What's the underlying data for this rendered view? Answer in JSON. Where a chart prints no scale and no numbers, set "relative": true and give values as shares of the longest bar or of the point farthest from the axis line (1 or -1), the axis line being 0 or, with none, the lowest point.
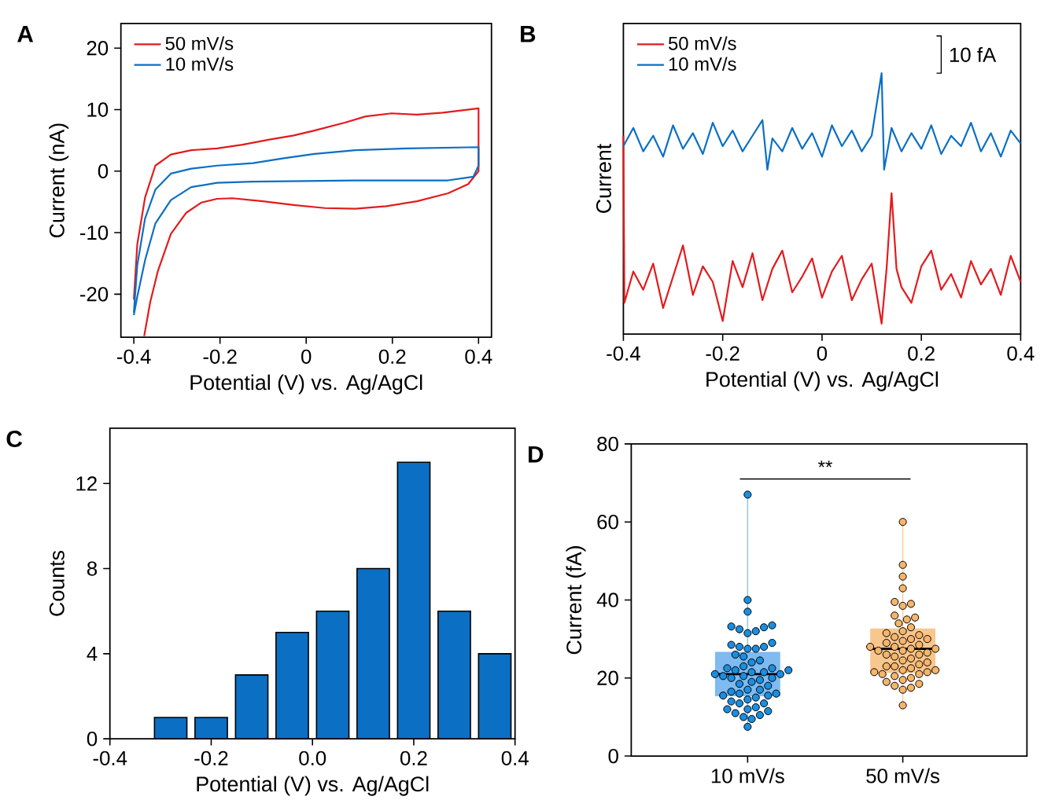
{
  "chart_data": [
    {
      "type": "line",
      "title": "A",
      "xlabel": "Potential (V) vs. Ag/AgCl",
      "ylabel": "Current (nA)",
      "xlim": [
        -0.43,
        0.43
      ],
      "ylim": [
        -27,
        24
      ],
      "xticks": [
        -0.4,
        -0.2,
        0,
        0.2,
        0.4
      ],
      "yticks": [
        -20,
        -10,
        0,
        10,
        20
      ],
      "legend": "top left",
      "line_style": "solid",
      "series": [
        {
          "name": "50 mV/s",
          "color": "#e31a1c",
          "x": [
            -0.4,
            -0.392,
            -0.374,
            -0.35,
            -0.314,
            -0.267,
            -0.207,
            -0.148,
            -0.088,
            -0.029,
            0.019,
            0.09,
            0.138,
            0.198,
            0.257,
            0.317,
            0.4,
            0.4,
            0.376,
            0.329,
            0.257,
            0.186,
            0.114,
            0.043,
            -0.029,
            -0.1,
            -0.171,
            -0.207,
            -0.243,
            -0.279,
            -0.314,
            -0.344,
            -0.362,
            -0.376
          ],
          "values": [
            -20.9,
            -11.9,
            -4.3,
            0.9,
            2.7,
            3.4,
            3.7,
            4.3,
            5.1,
            5.8,
            6.6,
            7.9,
            8.9,
            9.4,
            9.2,
            9.5,
            10.2,
            0,
            -2.1,
            -3.6,
            -4.9,
            -5.7,
            -6.1,
            -6,
            -5.5,
            -4.9,
            -4.4,
            -4.5,
            -5.1,
            -6.8,
            -10.2,
            -16.2,
            -21.3,
            -26.8
          ]
        },
        {
          "name": "10 mV/s",
          "color": "#0b6fc4",
          "x": [
            -0.4,
            -0.392,
            -0.374,
            -0.35,
            -0.314,
            -0.267,
            -0.207,
            -0.124,
            -0.052,
            0.019,
            0.114,
            0.233,
            0.4,
            0.4,
            0.388,
            0.329,
            0.114,
            -0.124,
            -0.207,
            -0.267,
            -0.314,
            -0.35,
            -0.374,
            -0.392,
            -0.4
          ],
          "values": [
            -23,
            -15.3,
            -7.7,
            -3,
            -0.4,
            0.4,
            0.9,
            1.3,
            2.1,
            2.8,
            3.4,
            3.7,
            3.9,
            0.9,
            -0.9,
            -1.5,
            -1.5,
            -1.7,
            -1.9,
            -2.6,
            -4.7,
            -8.5,
            -14.5,
            -20.4,
            -23.4
          ]
        }
      ]
    },
    {
      "type": "line",
      "title": "B",
      "xlabel": "Potential (V) vs. Ag/AgCl",
      "ylabel": "Current",
      "relative": true,
      "xlim": [
        -0.4,
        0.4
      ],
      "xticks": [
        -0.4,
        -0.2,
        0,
        0.2,
        0.4
      ],
      "legend": "top left",
      "line_style": "solid",
      "annotations": [
        "10 fA"
      ],
      "series": [
        {
          "name": "50 mV/s",
          "color": "#e31a1c",
          "x": [
            -0.4,
            -0.398,
            -0.38,
            -0.36,
            -0.34,
            -0.32,
            -0.3,
            -0.28,
            -0.26,
            -0.24,
            -0.22,
            -0.2,
            -0.18,
            -0.16,
            -0.14,
            -0.12,
            -0.1,
            -0.08,
            -0.06,
            -0.04,
            -0.02,
            0,
            0.02,
            0.04,
            0.06,
            0.08,
            0.1,
            0.12,
            0.13,
            0.14,
            0.15,
            0.16,
            0.18,
            0.2,
            0.22,
            0.24,
            0.26,
            0.28,
            0.3,
            0.32,
            0.34,
            0.36,
            0.38,
            0.4
          ],
          "values": [
            0.76,
            0.12,
            0.24,
            0.17,
            0.27,
            0.1,
            0.22,
            0.34,
            0.15,
            0.26,
            0.2,
            0.05,
            0.28,
            0.18,
            0.31,
            0.13,
            0.25,
            0.32,
            0.16,
            0.22,
            0.29,
            0.14,
            0.24,
            0.3,
            0.13,
            0.21,
            0.27,
            0.04,
            0.25,
            0.54,
            0.25,
            0.18,
            0.12,
            0.26,
            0.32,
            0.17,
            0.23,
            0.14,
            0.28,
            0.19,
            0.25,
            0.15,
            0.3,
            0.2
          ]
        },
        {
          "name": "10 mV/s",
          "color": "#0b6fc4",
          "x": [
            -0.4,
            -0.38,
            -0.36,
            -0.34,
            -0.32,
            -0.3,
            -0.28,
            -0.26,
            -0.24,
            -0.22,
            -0.2,
            -0.18,
            -0.16,
            -0.14,
            -0.12,
            -0.11,
            -0.1,
            -0.08,
            -0.06,
            -0.04,
            -0.02,
            0,
            0.02,
            0.04,
            0.06,
            0.08,
            0.1,
            0.12,
            0.125,
            0.14,
            0.16,
            0.18,
            0.2,
            0.22,
            0.24,
            0.26,
            0.28,
            0.3,
            0.32,
            0.34,
            0.36,
            0.38,
            0.4
          ],
          "values": [
            0.72,
            0.79,
            0.7,
            0.76,
            0.68,
            0.8,
            0.71,
            0.77,
            0.69,
            0.81,
            0.72,
            0.78,
            0.7,
            0.76,
            0.82,
            0.63,
            0.75,
            0.7,
            0.79,
            0.71,
            0.77,
            0.68,
            0.8,
            0.72,
            0.78,
            0.7,
            0.76,
            1.0,
            0.63,
            0.79,
            0.7,
            0.77,
            0.71,
            0.8,
            0.69,
            0.76,
            0.72,
            0.81,
            0.7,
            0.77,
            0.68,
            0.78,
            0.73
          ]
        }
      ]
    },
    {
      "type": "histogram",
      "title": "C",
      "xlabel": "Potential (V) vs. Ag/AgCl",
      "ylabel": "Counts",
      "color": "#0b6fc4",
      "bins": [
        -0.32,
        -0.24,
        -0.16,
        -0.08,
        0,
        0.08,
        0.16,
        0.24,
        0.32,
        0.4
      ],
      "values": [
        1,
        1,
        3,
        5,
        6,
        8,
        13,
        6,
        4
      ],
      "xlim": [
        -0.4,
        0.4
      ],
      "ylim": [
        0,
        14.6
      ],
      "xticks": [
        -0.4,
        -0.2,
        {
          "value": 0,
          "label": "0.0"
        },
        0.2,
        0.4
      ],
      "yticks": [
        0,
        4,
        8,
        12
      ]
    },
    {
      "type": "box",
      "title": "D",
      "ylabel": "Current (fA)",
      "categories": [
        "10 mV/s",
        "50 mV/s"
      ],
      "colors": [
        "#7fbaf0",
        "#f9c68e"
      ],
      "ylim": [
        0,
        80
      ],
      "yticks": [
        0,
        20,
        40,
        60,
        80
      ],
      "annotations": [
        "**"
      ],
      "boxes": [
        {
          "low": 7.5,
          "q1": 15.3,
          "median": 21,
          "q3": 26.7,
          "high": 67
        },
        {
          "low": 13,
          "q1": 21.3,
          "median": 27.5,
          "q3": 32.7,
          "high": 60
        }
      ],
      "series": [
        {
          "type": "scatter",
          "color": "#1a8ee0",
          "x": [
            "10 mV/s",
            "10 mV/s",
            "10 mV/s",
            "10 mV/s",
            "10 mV/s",
            "10 mV/s",
            "10 mV/s",
            "10 mV/s",
            "10 mV/s",
            "10 mV/s",
            "10 mV/s",
            "10 mV/s",
            "10 mV/s",
            "10 mV/s",
            "10 mV/s",
            "10 mV/s",
            "10 mV/s",
            "10 mV/s",
            "10 mV/s",
            "10 mV/s",
            "10 mV/s",
            "10 mV/s",
            "10 mV/s",
            "10 mV/s",
            "10 mV/s",
            "10 mV/s",
            "10 mV/s",
            "10 mV/s",
            "10 mV/s",
            "10 mV/s",
            "10 mV/s",
            "10 mV/s",
            "10 mV/s",
            "10 mV/s",
            "10 mV/s",
            "10 mV/s",
            "10 mV/s",
            "10 mV/s",
            "10 mV/s",
            "10 mV/s",
            "10 mV/s",
            "10 mV/s",
            "10 mV/s",
            "10 mV/s",
            "10 mV/s",
            "10 mV/s",
            "10 mV/s",
            "10 mV/s",
            "10 mV/s",
            "10 mV/s",
            "10 mV/s",
            "10 mV/s",
            "10 mV/s",
            "10 mV/s",
            "10 mV/s",
            "10 mV/s",
            "10 mV/s"
          ],
          "values": [
            67,
            40,
            37,
            33.5,
            33.2,
            33,
            32.5,
            32,
            31.5,
            29,
            28.5,
            28,
            28,
            27.5,
            27.5,
            26,
            25.5,
            24.5,
            24,
            23,
            22.5,
            22.5,
            22,
            22,
            21.5,
            21.5,
            21,
            21,
            20.5,
            20.5,
            20,
            20,
            19.5,
            19,
            18.5,
            18,
            17,
            17,
            16.5,
            16,
            16,
            15.5,
            15.5,
            15,
            14.5,
            14,
            13.5,
            13.5,
            12.5,
            12,
            12,
            11.5,
            11,
            10.5,
            10,
            9.5,
            7.5
          ]
        },
        {
          "type": "scatter",
          "color": "#f6b56a",
          "x": [
            "50 mV/s",
            "50 mV/s",
            "50 mV/s",
            "50 mV/s",
            "50 mV/s",
            "50 mV/s",
            "50 mV/s",
            "50 mV/s",
            "50 mV/s",
            "50 mV/s",
            "50 mV/s",
            "50 mV/s",
            "50 mV/s",
            "50 mV/s",
            "50 mV/s",
            "50 mV/s",
            "50 mV/s",
            "50 mV/s",
            "50 mV/s",
            "50 mV/s",
            "50 mV/s",
            "50 mV/s",
            "50 mV/s",
            "50 mV/s",
            "50 mV/s",
            "50 mV/s",
            "50 mV/s",
            "50 mV/s",
            "50 mV/s",
            "50 mV/s",
            "50 mV/s",
            "50 mV/s",
            "50 mV/s",
            "50 mV/s",
            "50 mV/s",
            "50 mV/s",
            "50 mV/s",
            "50 mV/s",
            "50 mV/s",
            "50 mV/s",
            "50 mV/s",
            "50 mV/s",
            "50 mV/s",
            "50 mV/s",
            "50 mV/s",
            "50 mV/s",
            "50 mV/s",
            "50 mV/s",
            "50 mV/s",
            "50 mV/s",
            "50 mV/s",
            "50 mV/s",
            "50 mV/s"
          ],
          "values": [
            60,
            49,
            46,
            43,
            39.5,
            39,
            38.5,
            36,
            35.5,
            35,
            34,
            33,
            32,
            31.5,
            31,
            30.5,
            30,
            30,
            29.5,
            29,
            28.5,
            28,
            28,
            27.5,
            27.5,
            27,
            27,
            26.5,
            26,
            26,
            25.5,
            25,
            24.5,
            24,
            23.5,
            23,
            23,
            22.5,
            22,
            22,
            21.5,
            21.5,
            21,
            21,
            20.5,
            20,
            19.5,
            19,
            18.5,
            18,
            17.5,
            17,
            13
          ]
        }
      ]
    }
  ]
}
